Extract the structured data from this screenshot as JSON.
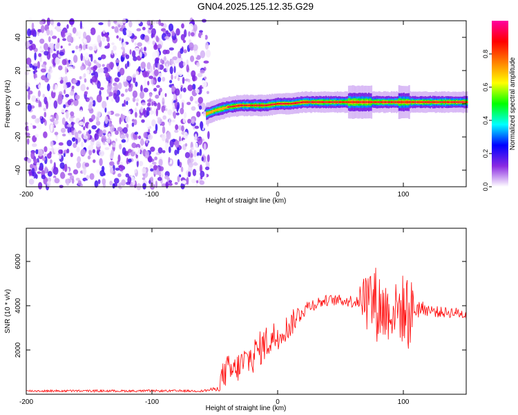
{
  "title": "GN04.2025.125.12.35.G29",
  "chart_data": [
    {
      "type": "heatmap",
      "xlabel": "Height of straight line (km)",
      "ylabel": "Frequency (Hz)",
      "xlim": [
        -200,
        150
      ],
      "ylim": [
        -50,
        50
      ],
      "xticks": [
        -200,
        -100,
        0,
        100
      ],
      "yticks": [
        -40,
        -20,
        0,
        20,
        40
      ],
      "colorbar": {
        "label": "Normalized spectral amplitude",
        "range": [
          0,
          1
        ],
        "ticks": [
          0.0,
          0.2,
          0.4,
          0.6,
          0.8
        ],
        "tick_labels": [
          "0.0",
          "0.2",
          "0.4",
          "0.6",
          "0.8"
        ],
        "colors": [
          "#ffffff",
          "#8a2be2",
          "#0000ff",
          "#00ffff",
          "#00ff00",
          "#ffff00",
          "#ff8000",
          "#ff0000",
          "#ff00a0"
        ]
      },
      "noise_region": {
        "x": [
          -200,
          -55
        ],
        "freq": [
          -50,
          50
        ],
        "amplitude_range": [
          0.0,
          0.2
        ]
      },
      "signal_trace": {
        "x": [
          -57,
          -50,
          -40,
          -30,
          -20,
          -10,
          0,
          10,
          20,
          40,
          60,
          80,
          100,
          120,
          150
        ],
        "freq": [
          -6,
          -4,
          -2,
          -1,
          -1,
          -1,
          0,
          0,
          1,
          1,
          1,
          1,
          1,
          1,
          1
        ],
        "peak_amplitude": 0.95
      }
    },
    {
      "type": "line",
      "xlabel": "Height of straight line (km)",
      "ylabel": "SNR (10 * v/v)",
      "xlim": [
        -200,
        150
      ],
      "ylim": [
        0,
        7500
      ],
      "xticks": [
        -200,
        -100,
        0,
        100
      ],
      "yticks": [
        2000,
        4000,
        6000
      ],
      "color": "#ff0000",
      "series": [
        {
          "x": [
            -200,
            -150,
            -100,
            -60,
            -47,
            -45,
            -40,
            -35,
            -30,
            -25,
            -20,
            -15,
            -10,
            -5,
            0,
            5,
            10,
            15,
            20,
            25,
            30,
            40,
            50,
            60,
            65,
            70,
            75,
            80,
            85,
            90,
            95,
            100,
            105,
            110,
            115,
            120,
            130,
            140,
            150
          ],
          "y": [
            150,
            150,
            150,
            150,
            250,
            700,
            1100,
            1000,
            1300,
            1500,
            1700,
            2000,
            2300,
            2500,
            2700,
            2900,
            3100,
            3500,
            3800,
            4000,
            4100,
            4250,
            4250,
            4200,
            4300,
            4400,
            4300,
            4000,
            3800,
            3700,
            3900,
            3800,
            3700,
            3900,
            3900,
            3800,
            3700,
            3700,
            3600
          ],
          "spread": [
            50,
            50,
            50,
            50,
            100,
            600,
            700,
            700,
            700,
            800,
            800,
            800,
            800,
            800,
            700,
            600,
            600,
            500,
            400,
            300,
            300,
            250,
            250,
            300,
            500,
            1300,
            1800,
            1700,
            1600,
            1200,
            1200,
            1700,
            1800,
            600,
            300,
            300,
            250,
            250,
            250
          ]
        }
      ]
    }
  ]
}
